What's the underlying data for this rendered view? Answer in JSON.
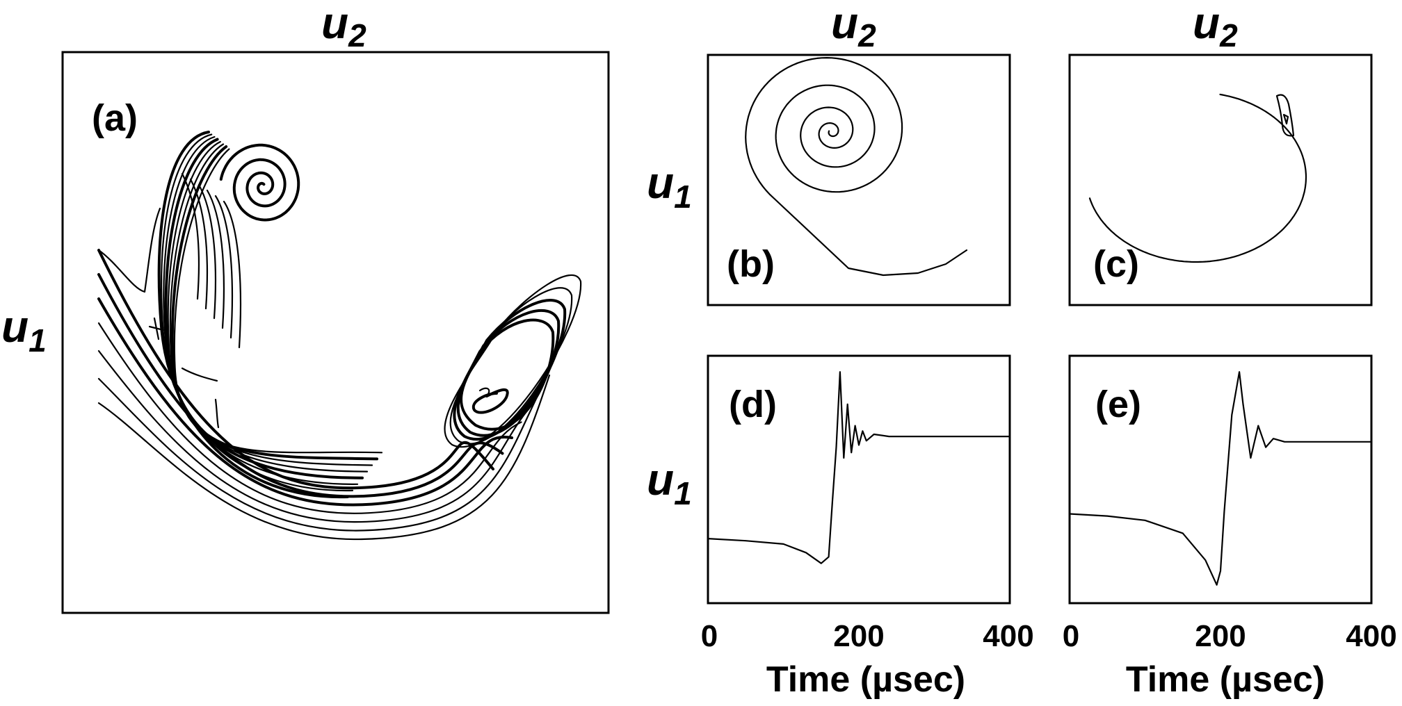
{
  "chart_data": [
    {
      "id": "a",
      "type": "line",
      "panel_label": "(a)",
      "title": "",
      "xlabel": "u2",
      "ylabel": "u1",
      "grid": false,
      "description_of_content": "phase-space trajectories"
    },
    {
      "id": "b",
      "type": "line",
      "panel_label": "(b)",
      "xlabel": "u2",
      "ylabel": "u1",
      "grid": false
    },
    {
      "id": "c",
      "type": "line",
      "panel_label": "(c)",
      "xlabel": "u2",
      "ylabel": "",
      "grid": false
    },
    {
      "id": "d",
      "type": "line",
      "panel_label": "(d)",
      "xlabel": "Time (µsec)",
      "ylabel": "u1",
      "xlim": [
        0,
        400
      ],
      "xticks": [
        "0",
        "200",
        "400"
      ],
      "grid": false,
      "x": [
        0,
        50,
        100,
        130,
        150,
        160,
        165,
        170,
        175,
        180,
        185,
        190,
        195,
        200,
        205,
        210,
        220,
        240,
        270,
        300,
        350,
        400
      ],
      "y": [
        -0.55,
        -0.57,
        -0.6,
        -0.68,
        -0.78,
        -0.72,
        -0.2,
        0.3,
        1.0,
        0.2,
        0.7,
        0.25,
        0.5,
        0.32,
        0.45,
        0.36,
        0.42,
        0.4,
        0.4,
        0.4,
        0.4,
        0.4
      ]
    },
    {
      "id": "e",
      "type": "line",
      "panel_label": "(e)",
      "xlabel": "Time (µsec)",
      "ylabel": "",
      "xlim": [
        0,
        400
      ],
      "xticks": [
        "0",
        "200",
        "400"
      ],
      "grid": false,
      "x": [
        0,
        50,
        100,
        150,
        180,
        195,
        200,
        205,
        215,
        225,
        230,
        240,
        250,
        260,
        270,
        285,
        300,
        350,
        400
      ],
      "y": [
        -0.32,
        -0.34,
        -0.38,
        -0.5,
        -0.75,
        -0.98,
        -0.85,
        -0.3,
        0.6,
        1.0,
        0.7,
        0.2,
        0.5,
        0.3,
        0.38,
        0.35,
        0.35,
        0.35,
        0.35
      ]
    }
  ],
  "labels": {
    "u": "u",
    "sub1": "1",
    "sub2": "2",
    "a": "(a)",
    "b": "(b)",
    "c": "(c)",
    "d": "(d)",
    "e": "(e)",
    "tick0": "0",
    "tick200": "200",
    "tick400": "400",
    "time_label": "Time (µsec)"
  }
}
